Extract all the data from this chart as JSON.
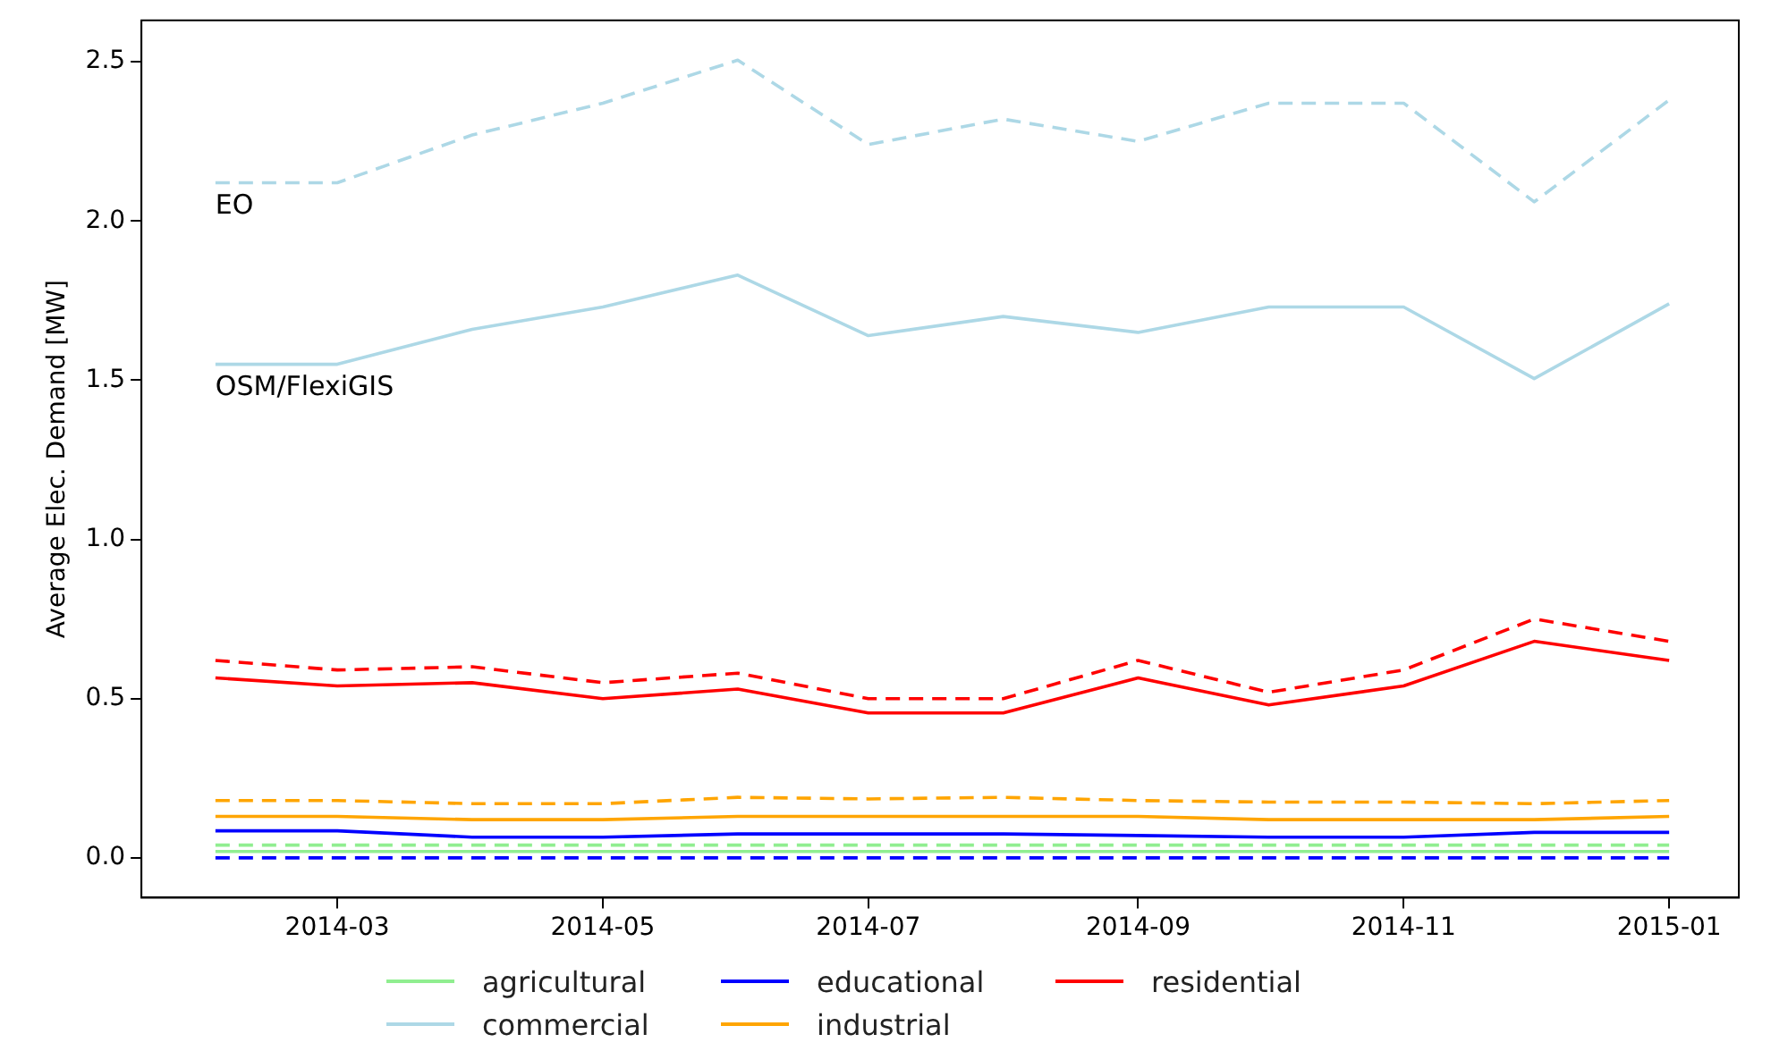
{
  "chart_data": {
    "type": "line",
    "ylabel": "Average Elec. Demand [MW]",
    "x": [
      "2014-02",
      "2014-03",
      "2014-04",
      "2014-05",
      "2014-06",
      "2014-07",
      "2014-08",
      "2014-09",
      "2014-10",
      "2014-11",
      "2014-12",
      "2015-01"
    ],
    "xlim": [
      "2014-01-15",
      "2015-01-17"
    ],
    "xticks": [
      "2014-03",
      "2014-05",
      "2014-07",
      "2014-09",
      "2014-11",
      "2015-01"
    ],
    "ylim": [
      -0.125,
      2.63
    ],
    "yticks": [
      {
        "value": 0,
        "label": "0.0"
      },
      0.5,
      {
        "value": 1,
        "label": "1.0"
      },
      1.5,
      {
        "value": 2,
        "label": "2.0"
      },
      2.5
    ],
    "grid": false,
    "legend": "bottom",
    "marker": "none",
    "series": [
      {
        "name": "agricultural",
        "color": "#90ee90",
        "line_style": "solid",
        "values": [
          0.02,
          0.02,
          0.02,
          0.02,
          0.02,
          0.02,
          0.02,
          0.02,
          0.02,
          0.02,
          0.02,
          0.02
        ]
      },
      {
        "name": "commercial",
        "color": "#add8e6",
        "line_style": "solid",
        "values": [
          1.55,
          1.55,
          1.66,
          1.73,
          1.83,
          1.64,
          1.7,
          1.65,
          1.73,
          1.73,
          1.505,
          1.74
        ]
      },
      {
        "name": "educational",
        "color": "#0000ff",
        "line_style": "solid",
        "values": [
          0.085,
          0.085,
          0.065,
          0.065,
          0.075,
          0.075,
          0.075,
          0.07,
          0.065,
          0.065,
          0.08,
          0.08
        ]
      },
      {
        "name": "industrial",
        "color": "#ffa500",
        "line_style": "solid",
        "values": [
          0.13,
          0.13,
          0.12,
          0.12,
          0.13,
          0.13,
          0.13,
          0.13,
          0.12,
          0.12,
          0.12,
          0.13
        ]
      },
      {
        "name": "residential",
        "color": "#ff0000",
        "line_style": "solid",
        "values": [
          0.565,
          0.54,
          0.55,
          0.5,
          0.53,
          0.455,
          0.455,
          0.565,
          0.48,
          0.54,
          0.68,
          0.62
        ]
      },
      {
        "color": "#90ee90",
        "line_style": "dashed",
        "values": [
          0.04,
          0.04,
          0.04,
          0.04,
          0.04,
          0.04,
          0.04,
          0.04,
          0.04,
          0.04,
          0.04,
          0.04
        ]
      },
      {
        "color": "#add8e6",
        "line_style": "dashed",
        "values": [
          2.12,
          2.12,
          2.27,
          2.37,
          2.505,
          2.24,
          2.32,
          2.25,
          2.37,
          2.37,
          2.06,
          2.38
        ]
      },
      {
        "color": "#0000ff",
        "line_style": "dashed",
        "values": [
          0.0,
          0.0,
          0.0,
          0.0,
          0.0,
          0.0,
          0.0,
          0.0,
          0.0,
          0.0,
          0.0,
          0.0
        ]
      },
      {
        "color": "#ffa500",
        "line_style": "dashed",
        "values": [
          0.18,
          0.18,
          0.17,
          0.17,
          0.19,
          0.185,
          0.19,
          0.18,
          0.175,
          0.175,
          0.17,
          0.18
        ]
      },
      {
        "color": "#ff0000",
        "line_style": "dashed",
        "values": [
          0.62,
          0.59,
          0.6,
          0.55,
          0.58,
          0.5,
          0.5,
          0.62,
          0.52,
          0.59,
          0.75,
          0.68
        ]
      }
    ],
    "annotations": [
      {
        "text": "EO",
        "x": "2014-02",
        "y": 2.12
      },
      {
        "text": "OSM/FlexiGIS",
        "x": "2014-02",
        "y": 1.55
      }
    ]
  }
}
